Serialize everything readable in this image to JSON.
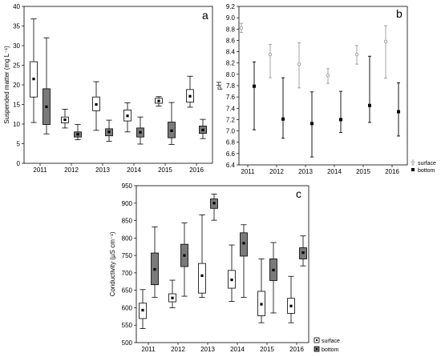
{
  "chart_data": [
    {
      "panel_label": "a",
      "type": "box",
      "xlabel": "",
      "ylabel": "Suspended matter (mg L⁻¹)",
      "categories": [
        "2011",
        "2012",
        "2013",
        "2014",
        "2015",
        "2016"
      ],
      "ylim": [
        0,
        40
      ],
      "yticks": [
        "0",
        "5",
        "10",
        "15",
        "20",
        "25",
        "30",
        "35",
        "40"
      ],
      "grid": false,
      "series": [
        {
          "color": "#ffffff",
          "boxes": [
            {
              "min": 10.4,
              "q1": 16.9,
              "q3": 25.9,
              "max": 36.8,
              "median": 21.5
            },
            {
              "min": 9.0,
              "q1": 10.3,
              "q3": 11.8,
              "max": 13.8,
              "median": 11.1
            },
            {
              "min": 8.4,
              "q1": 13.4,
              "q3": 16.9,
              "max": 20.8,
              "median": 15.0
            },
            {
              "min": 8.0,
              "q1": 10.8,
              "q3": 13.6,
              "max": 15.4,
              "median": 12.1
            },
            {
              "min": 14.6,
              "q1": 15.3,
              "q3": 16.6,
              "max": 17.0,
              "median": 15.9
            },
            {
              "min": 14.3,
              "q1": 15.6,
              "q3": 18.8,
              "max": 22.2,
              "median": 17.1
            }
          ]
        },
        {
          "color": "#7a7a7a",
          "boxes": [
            {
              "min": 7.5,
              "q1": 9.9,
              "q3": 19.0,
              "max": 32.0,
              "median": 14.4
            },
            {
              "min": 6.0,
              "q1": 6.7,
              "q3": 8.0,
              "max": 9.9,
              "median": 7.4
            },
            {
              "min": 5.6,
              "q1": 7.0,
              "q3": 8.8,
              "max": 11.0,
              "median": 8.0
            },
            {
              "min": 4.9,
              "q1": 6.7,
              "q3": 9.0,
              "max": 11.8,
              "median": 7.9
            },
            {
              "min": 4.8,
              "q1": 6.5,
              "q3": 10.5,
              "max": 15.5,
              "median": 8.3
            },
            {
              "min": 6.3,
              "q1": 7.6,
              "q3": 9.5,
              "max": 11.2,
              "median": 8.5
            }
          ]
        }
      ]
    },
    {
      "panel_label": "b",
      "type": "scatter",
      "xlabel": "",
      "ylabel": "pH",
      "categories": [
        "2011",
        "2012",
        "2013",
        "2014",
        "2015",
        "2016"
      ],
      "ylim": [
        6.4,
        9.2
      ],
      "yticks": [
        "6.4",
        "6.6",
        "6.8",
        "7.0",
        "7.2",
        "7.4",
        "7.6",
        "7.8",
        "8.0",
        "8.2",
        "8.4",
        "8.6",
        "8.8",
        "9.0",
        "9.2"
      ],
      "grid": false,
      "legend": {
        "position": "outside-bottom-right"
      },
      "series": [
        {
          "name": "surface",
          "color": "#9a9a9a",
          "marker": "open-circle",
          "points": [
            {
              "mean": 8.82,
              "low": 8.74,
              "high": 8.9
            },
            {
              "mean": 8.35,
              "low": 7.94,
              "high": 8.53
            },
            {
              "mean": 8.18,
              "low": 7.76,
              "high": 8.56
            },
            {
              "mean": 7.98,
              "low": 7.84,
              "high": 8.1
            },
            {
              "mean": 8.35,
              "low": 8.18,
              "high": 8.51
            },
            {
              "mean": 8.58,
              "low": 7.93,
              "high": 8.86
            }
          ]
        },
        {
          "name": "bottom",
          "color": "#000000",
          "marker": "filled-square",
          "points": [
            {
              "mean": 7.79,
              "low": 7.02,
              "high": 8.22
            },
            {
              "mean": 7.21,
              "low": 6.87,
              "high": 7.94
            },
            {
              "mean": 7.13,
              "low": 6.54,
              "high": 7.69
            },
            {
              "mean": 7.2,
              "low": 6.97,
              "high": 7.7
            },
            {
              "mean": 7.45,
              "low": 7.15,
              "high": 8.32
            },
            {
              "mean": 7.34,
              "low": 6.91,
              "high": 7.85
            }
          ]
        }
      ]
    },
    {
      "panel_label": "c",
      "type": "box",
      "xlabel": "",
      "ylabel": "Conductivity (µS cm⁻¹)",
      "categories": [
        "2011",
        "2012",
        "2013",
        "2014",
        "2015",
        "2016"
      ],
      "ylim": [
        500,
        950
      ],
      "yticks": [
        "500",
        "550",
        "600",
        "650",
        "700",
        "750",
        "800",
        "850",
        "900",
        "950"
      ],
      "grid": false,
      "legend": {
        "position": "outside-bottom-right"
      },
      "series": [
        {
          "name": "surface",
          "color": "#ffffff",
          "boxes": [
            {
              "min": 540,
              "q1": 569,
              "q3": 613,
              "max": 652,
              "median": 593
            },
            {
              "min": 600,
              "q1": 617,
              "q3": 640,
              "max": 679,
              "median": 628
            },
            {
              "min": 630,
              "q1": 642,
              "q3": 727,
              "max": 866,
              "median": 692
            },
            {
              "min": 618,
              "q1": 656,
              "q3": 707,
              "max": 780,
              "median": 680
            },
            {
              "min": 557,
              "q1": 577,
              "q3": 647,
              "max": 740,
              "median": 610
            },
            {
              "min": 557,
              "q1": 584,
              "q3": 627,
              "max": 690,
              "median": 605
            }
          ]
        },
        {
          "name": "bottom",
          "color": "#7a7a7a",
          "boxes": [
            {
              "min": 630,
              "q1": 666,
              "q3": 757,
              "max": 832,
              "median": 710
            },
            {
              "min": 633,
              "q1": 718,
              "q3": 782,
              "max": 843,
              "median": 750
            },
            {
              "min": 851,
              "q1": 885,
              "q3": 912,
              "max": 926,
              "median": 900
            },
            {
              "min": 630,
              "q1": 748,
              "q3": 815,
              "max": 838,
              "median": 785
            },
            {
              "min": 585,
              "q1": 678,
              "q3": 740,
              "max": 787,
              "median": 708
            },
            {
              "min": 720,
              "q1": 740,
              "q3": 772,
              "max": 806,
              "median": 758
            }
          ]
        }
      ]
    }
  ]
}
